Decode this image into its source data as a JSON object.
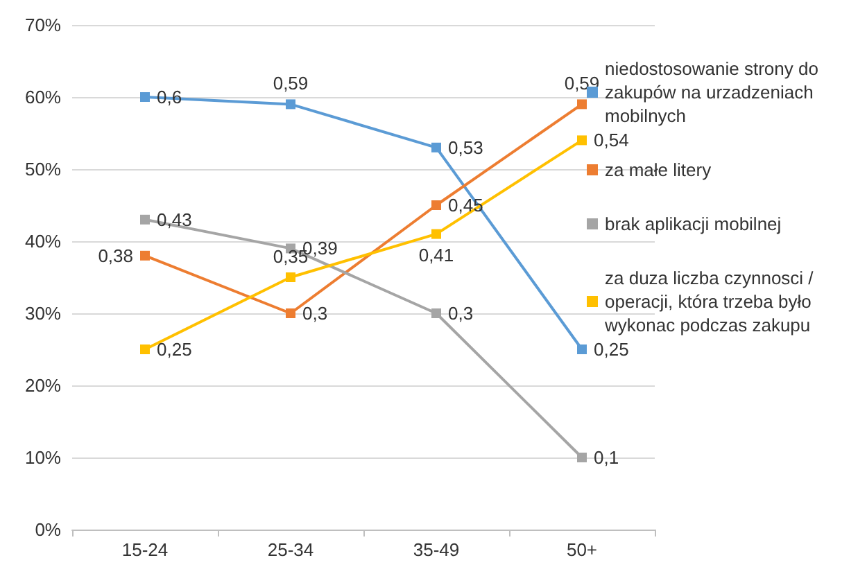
{
  "chart_data": {
    "type": "line",
    "categories": [
      "15-24",
      "25-34",
      "35-49",
      "50+"
    ],
    "series": [
      {
        "name": "niedostosowanie strony do zakupów na urzadzeniach mobilnych",
        "color": "#5b9bd5",
        "values": [
          0.6,
          0.59,
          0.53,
          0.25
        ],
        "value_labels": [
          "0,6",
          "0,59",
          "0,53",
          "0,25"
        ]
      },
      {
        "name": "za małe litery",
        "color": "#ed7d31",
        "values": [
          0.38,
          0.3,
          0.45,
          0.59
        ],
        "value_labels": [
          "0,38",
          "0,3",
          "0,45",
          "0,59"
        ]
      },
      {
        "name": "brak aplikacji mobilnej",
        "color": "#a5a5a5",
        "values": [
          0.43,
          0.39,
          0.3,
          0.1
        ],
        "value_labels": [
          "0,43",
          "0,39",
          "0,3",
          "0,1"
        ]
      },
      {
        "name": "za duza liczba czynnosci / operacji, która trzeba było wykonac podczas zakupu",
        "color": "#ffc000",
        "values": [
          0.25,
          0.35,
          0.41,
          0.54
        ],
        "value_labels": [
          "0,25",
          "0,35",
          "0,41",
          "0,54"
        ]
      }
    ],
    "ylim": [
      0,
      0.7
    ],
    "yticks": [
      {
        "value": 0,
        "label": "0%"
      },
      {
        "value": 0.1,
        "label": "10%"
      },
      {
        "value": 0.2,
        "label": "20%"
      },
      {
        "value": 0.3,
        "label": "30%"
      },
      {
        "value": 0.4,
        "label": "40%"
      },
      {
        "value": 0.5,
        "label": "50%"
      },
      {
        "value": 0.6,
        "label": "60%"
      },
      {
        "value": 0.7,
        "label": "70%"
      }
    ],
    "grid": "y",
    "legend": "right",
    "marker": "square",
    "line_style": "solid"
  }
}
